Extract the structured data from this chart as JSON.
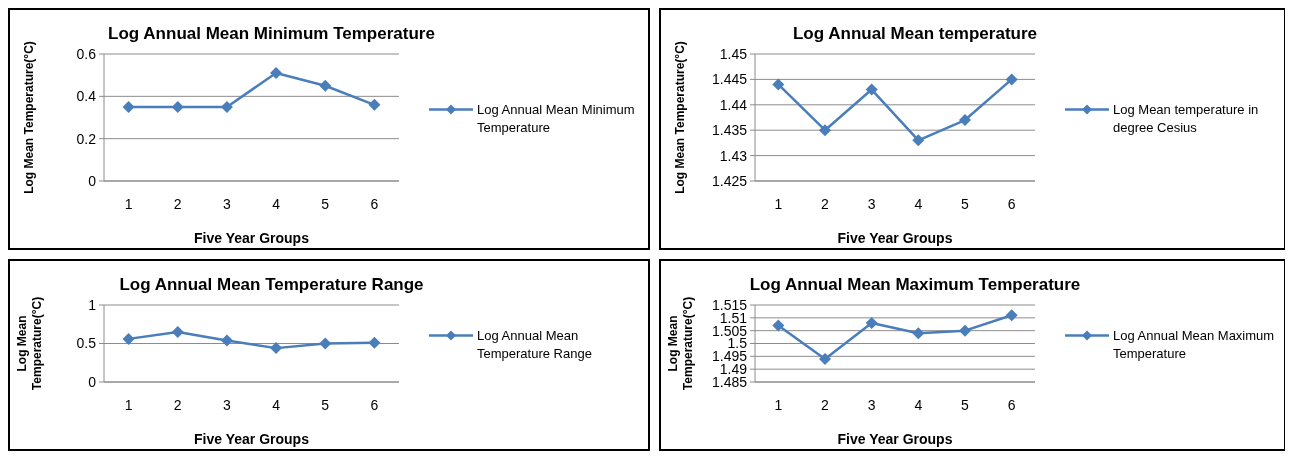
{
  "chart_data": [
    {
      "type": "line",
      "title": "Log Annual Mean Minimum Temperature",
      "xlabel": "Five Year Groups",
      "ylabel": "Log Mean Temperature(°C)",
      "categories": [
        "1",
        "2",
        "3",
        "4",
        "5",
        "6"
      ],
      "series": [
        {
          "name": "Log Annual Mean Minimum Temperature",
          "color": "#4a7ebb",
          "values": [
            0.35,
            0.35,
            0.35,
            0.51,
            0.45,
            0.36
          ]
        }
      ],
      "ylim": [
        0,
        0.6
      ],
      "yticks": [
        0,
        0.2,
        0.4,
        0.6
      ],
      "grid": "y",
      "legend": "right",
      "marker": "diamond",
      "line_style": "solid"
    },
    {
      "type": "line",
      "title": "Log Annual Mean temperature",
      "xlabel": "Five Year Groups",
      "ylabel": "Log Mean Temperature(°C)",
      "categories": [
        "1",
        "2",
        "3",
        "4",
        "5",
        "6"
      ],
      "series": [
        {
          "name": "Log Mean temperature in degree Cesius",
          "color": "#4a7ebb",
          "values": [
            1.444,
            1.435,
            1.443,
            1.433,
            1.437,
            1.445
          ]
        }
      ],
      "ylim": [
        1.425,
        1.45
      ],
      "yticks": [
        1.425,
        1.43,
        1.435,
        1.44,
        1.445,
        1.45
      ],
      "grid": "y",
      "legend": "right",
      "marker": "diamond",
      "line_style": "solid"
    },
    {
      "type": "line",
      "title": "Log Annual Mean Temperature Range",
      "xlabel": "Five Year Groups",
      "ylabel": "Log Mean Temperature(°C)",
      "categories": [
        "1",
        "2",
        "3",
        "4",
        "5",
        "6"
      ],
      "series": [
        {
          "name": "Log Annual Mean Temperature Range",
          "color": "#4a7ebb",
          "values": [
            0.56,
            0.65,
            0.54,
            0.44,
            0.5,
            0.51
          ]
        }
      ],
      "ylim": [
        0,
        1
      ],
      "yticks": [
        0,
        0.5,
        1
      ],
      "grid": "y",
      "legend": "right",
      "marker": "diamond",
      "line_style": "solid"
    },
    {
      "type": "line",
      "title": "Log Annual Mean Maximum Temperature",
      "xlabel": "Five Year Groups",
      "ylabel": "Log Mean Temperature(°C)",
      "categories": [
        "1",
        "2",
        "3",
        "4",
        "5",
        "6"
      ],
      "series": [
        {
          "name": "Log Annual Mean Maximum Temperature",
          "color": "#4a7ebb",
          "values": [
            1.507,
            1.494,
            1.508,
            1.504,
            1.505,
            1.511
          ]
        }
      ],
      "ylim": [
        1.485,
        1.515
      ],
      "yticks": [
        1.485,
        1.49,
        1.495,
        1.5,
        1.505,
        1.51,
        1.515
      ],
      "grid": "y",
      "legend": "right",
      "marker": "diamond",
      "line_style": "solid"
    }
  ]
}
